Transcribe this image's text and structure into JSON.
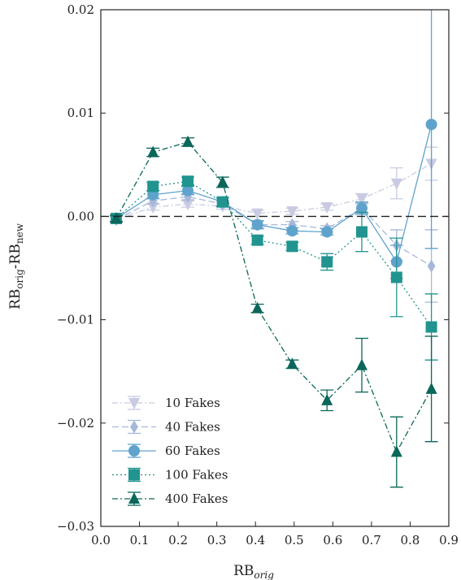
{
  "chart_data": {
    "type": "line",
    "xlabel_main": "RB",
    "xlabel_sub": "orig",
    "ylabel_a": "RB",
    "ylabel_a_sub": "orig",
    "ylabel_sep": "-RB",
    "ylabel_b_sub": "new",
    "xlim": [
      0.0,
      0.9
    ],
    "ylim": [
      -0.03,
      0.02
    ],
    "xticks": [
      0.0,
      0.1,
      0.2,
      0.3,
      0.4,
      0.5,
      0.6,
      0.7,
      0.8,
      0.9
    ],
    "xtick_labels": [
      "0.0",
      "0.1",
      "0.2",
      "0.3",
      "0.4",
      "0.5",
      "0.6",
      "0.7",
      "0.8",
      "0.9"
    ],
    "yticks": [
      0.02,
      0.01,
      0.0,
      -0.01,
      -0.02,
      -0.03
    ],
    "ytick_labels": [
      "0.02",
      "0.01",
      "0.00",
      "−0.01",
      "−0.02",
      "−0.03"
    ],
    "zero_line": 0.0,
    "grid": false,
    "legend_position": "bottom-left",
    "x": [
      0.04,
      0.135,
      0.225,
      0.315,
      0.405,
      0.495,
      0.585,
      0.675,
      0.765,
      0.855
    ],
    "series": [
      {
        "name": "10 Fakes",
        "color": "#c9cbe3",
        "marker": "triangle-down",
        "linestyle": "dashdot",
        "values": [
          -0.0003,
          0.0009,
          0.0012,
          0.001,
          0.0003,
          0.0005,
          0.0009,
          0.0017,
          0.0032,
          0.0051
        ],
        "errors": [
          0.0003,
          0.0003,
          0.0003,
          0.0003,
          0.0003,
          0.0003,
          0.0003,
          0.0005,
          0.0015,
          0.0016
        ]
      },
      {
        "name": "40 Fakes",
        "color": "#a6b8da",
        "marker": "diamond",
        "linestyle": "dashed",
        "values": [
          -0.0003,
          0.0015,
          0.0019,
          0.0012,
          -0.0008,
          -0.0008,
          -0.0012,
          0.0008,
          -0.0028,
          -0.0048
        ],
        "errors": [
          0.0003,
          0.0003,
          0.0003,
          0.0003,
          0.0003,
          0.0003,
          0.0003,
          0.0005,
          0.0015,
          0.0035
        ]
      },
      {
        "name": "60 Fakes",
        "color": "#5fa3cc",
        "marker": "circle",
        "linestyle": "solid",
        "values": [
          -0.0002,
          0.0021,
          0.0025,
          0.0014,
          -0.0008,
          -0.0014,
          -0.0015,
          0.0008,
          -0.0044,
          0.0089
        ],
        "errors": [
          0.0003,
          0.0004,
          0.0004,
          0.0004,
          0.0004,
          0.0003,
          0.0003,
          0.0006,
          0.0016,
          0.012
        ]
      },
      {
        "name": "100 Fakes",
        "color": "#21948f",
        "marker": "square",
        "linestyle": "dotted",
        "values": [
          -0.0002,
          0.0029,
          0.0034,
          0.0014,
          -0.0023,
          -0.0029,
          -0.0044,
          -0.0015,
          -0.0059,
          -0.0107
        ],
        "errors": [
          0.0003,
          0.0004,
          0.0004,
          0.0004,
          0.0004,
          0.0004,
          0.0008,
          0.0019,
          0.0038,
          0.0032
        ]
      },
      {
        "name": "400 Fakes",
        "color": "#0b675a",
        "marker": "triangle-up",
        "linestyle": "dashdot",
        "values": [
          -0.0002,
          0.0062,
          0.0072,
          0.0033,
          -0.0089,
          -0.0143,
          -0.0178,
          -0.0144,
          -0.0228,
          -0.0167
        ],
        "errors": [
          0.0003,
          0.0004,
          0.0004,
          0.0005,
          0.0004,
          0.0004,
          0.001,
          0.0026,
          0.0034,
          0.0051
        ]
      }
    ]
  }
}
